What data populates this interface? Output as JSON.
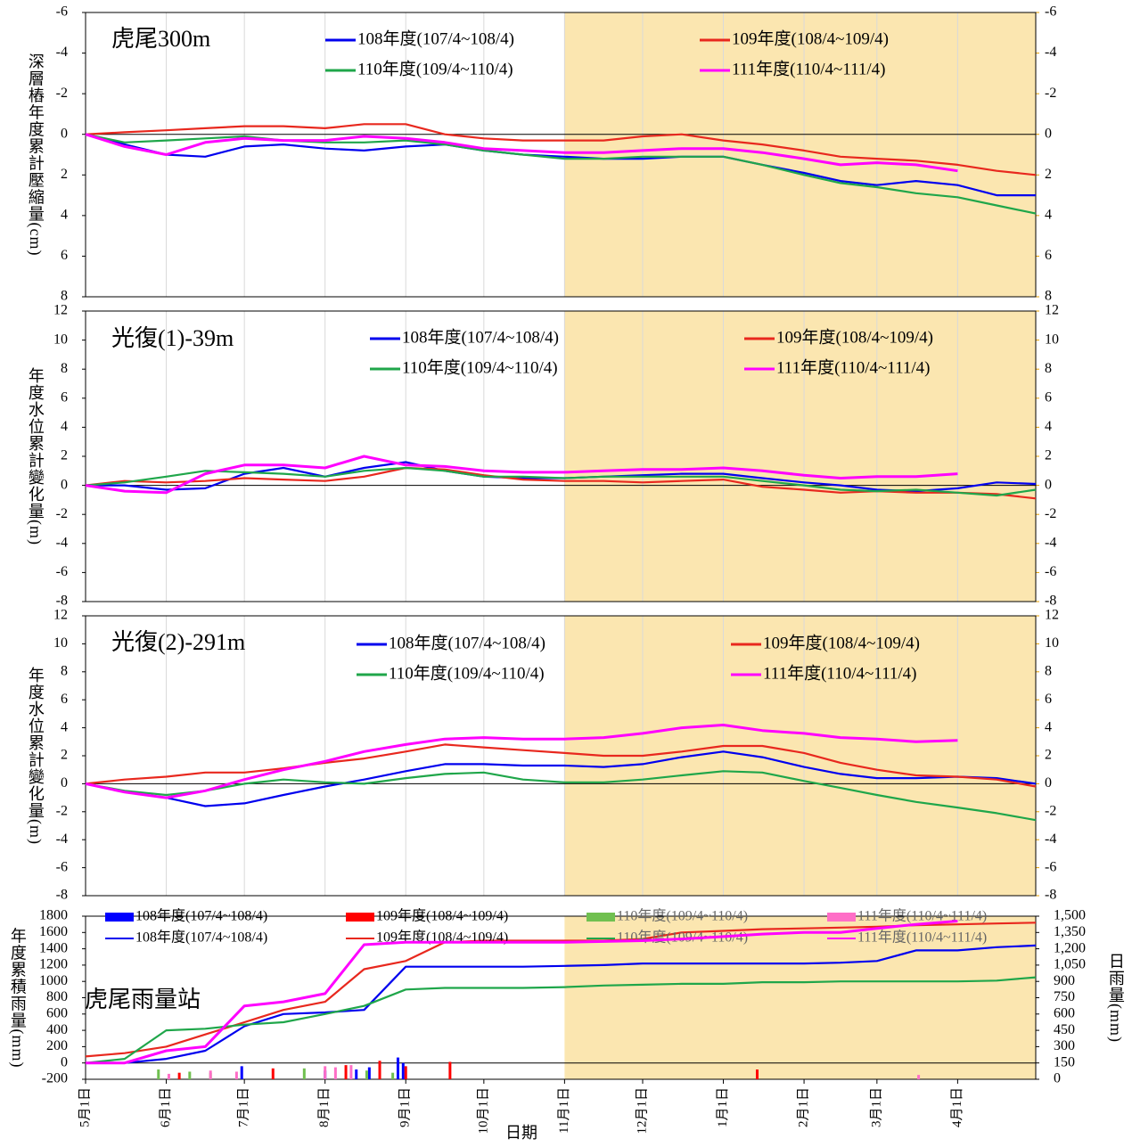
{
  "chart_data": [
    {
      "type": "line",
      "title": "虎尾300m",
      "y_label": "深層樁年度累計壓縮量(cm)",
      "y_inverted": true,
      "ylim": [
        -6,
        8
      ],
      "yticks": [
        -6,
        -4,
        -2,
        0,
        2,
        4,
        6,
        8
      ],
      "right_axis_mirror": true,
      "xlim": [
        0,
        365
      ],
      "xgrid": [
        31,
        61,
        92,
        123,
        153,
        184,
        214,
        245,
        276,
        304,
        335
      ],
      "highlight_x": [
        184,
        365
      ],
      "highlight_color": "#fbe6b0",
      "x": [
        0,
        15,
        31,
        46,
        61,
        76,
        92,
        107,
        123,
        138,
        153,
        168,
        184,
        199,
        214,
        229,
        245,
        260,
        276,
        290,
        304,
        319,
        335,
        350,
        365
      ],
      "series": [
        {
          "name": "108年度(107/4~108/4)",
          "color": "#0000ee",
          "values": [
            0,
            0.5,
            1,
            1.1,
            0.6,
            0.5,
            0.7,
            0.8,
            0.6,
            0.5,
            0.8,
            1,
            1.1,
            1.2,
            1.2,
            1.1,
            1.1,
            1.5,
            1.9,
            2.3,
            2.5,
            2.3,
            2.5,
            3,
            3
          ]
        },
        {
          "name": "109年度(108/4~109/4)",
          "color": "#e8281e",
          "values": [
            0,
            -0.1,
            -0.2,
            -0.3,
            -0.4,
            -0.4,
            -0.3,
            -0.5,
            -0.5,
            0,
            0.2,
            0.3,
            0.3,
            0.3,
            0.1,
            0,
            0.3,
            0.5,
            0.8,
            1.1,
            1.2,
            1.3,
            1.5,
            1.8,
            2
          ]
        },
        {
          "name": "110年度(109/4~110/4)",
          "color": "#1fa64a",
          "values": [
            0,
            0.4,
            0.3,
            0.2,
            0.1,
            0.3,
            0.4,
            0.4,
            0.3,
            0.5,
            0.8,
            1,
            1.2,
            1.2,
            1.1,
            1.1,
            1.1,
            1.5,
            2,
            2.4,
            2.6,
            2.9,
            3.1,
            3.5,
            3.9
          ]
        },
        {
          "name": "111年度(110/4~111/4)",
          "color": "#ff00ff",
          "values": [
            0,
            0.6,
            1.0,
            0.4,
            0.2,
            0.3,
            0.3,
            0.1,
            0.2,
            0.4,
            0.7,
            0.8,
            0.9,
            0.9,
            0.8,
            0.7,
            0.7,
            0.9,
            1.2,
            1.5,
            1.4,
            1.5,
            1.8,
            null,
            null
          ]
        }
      ]
    },
    {
      "type": "line",
      "title": "光復(1)-39m",
      "y_label": "年度水位累計變化量(m)",
      "ylim": [
        -8,
        12
      ],
      "yticks": [
        -8,
        -6,
        -4,
        -2,
        0,
        2,
        4,
        6,
        8,
        10,
        12
      ],
      "right_axis_mirror": true,
      "xlim": [
        0,
        365
      ],
      "xgrid": [
        31,
        61,
        92,
        123,
        153,
        184,
        214,
        245,
        276,
        304,
        335
      ],
      "highlight_x": [
        184,
        365
      ],
      "highlight_color": "#fbe6b0",
      "x": [
        0,
        15,
        31,
        46,
        61,
        76,
        92,
        107,
        123,
        138,
        153,
        168,
        184,
        199,
        214,
        229,
        245,
        260,
        276,
        290,
        304,
        319,
        335,
        350,
        365
      ],
      "series": [
        {
          "name": "108年度(107/4~108/4)",
          "color": "#0000ee",
          "values": [
            0,
            0,
            -0.3,
            -0.2,
            0.8,
            1.2,
            0.6,
            1.2,
            1.6,
            1.0,
            0.6,
            0.5,
            0.5,
            0.6,
            0.7,
            0.8,
            0.8,
            0.5,
            0.2,
            0,
            -0.3,
            -0.4,
            -0.2,
            0.2,
            0.1
          ]
        },
        {
          "name": "109年度(108/4~109/4)",
          "color": "#e8281e",
          "values": [
            0,
            0.3,
            0.2,
            0.3,
            0.5,
            0.4,
            0.3,
            0.6,
            1.2,
            1.1,
            0.7,
            0.4,
            0.3,
            0.3,
            0.2,
            0.3,
            0.4,
            -0.1,
            -0.3,
            -0.5,
            -0.4,
            -0.5,
            -0.5,
            -0.6,
            -0.9
          ]
        },
        {
          "name": "110年度(109/4~110/4)",
          "color": "#1fa64a",
          "values": [
            0,
            0.2,
            0.6,
            1.0,
            0.9,
            0.8,
            0.6,
            1.0,
            1.2,
            1.0,
            0.6,
            0.6,
            0.5,
            0.6,
            0.6,
            0.6,
            0.6,
            0.3,
            0,
            -0.3,
            -0.4,
            -0.3,
            -0.5,
            -0.7,
            -0.3
          ]
        },
        {
          "name": "111年度(110/4~111/4)",
          "color": "#ff00ff",
          "values": [
            0,
            -0.4,
            -0.5,
            0.8,
            1.4,
            1.4,
            1.2,
            2.0,
            1.4,
            1.3,
            1.0,
            0.9,
            0.9,
            1.0,
            1.1,
            1.1,
            1.2,
            1.0,
            0.7,
            0.5,
            0.6,
            0.6,
            0.8,
            null,
            null
          ]
        }
      ]
    },
    {
      "type": "line",
      "title": "光復(2)-291m",
      "y_label": "年度水位累計變化量(m)",
      "ylim": [
        -8,
        12
      ],
      "yticks": [
        -8,
        -6,
        -4,
        -2,
        0,
        2,
        4,
        6,
        8,
        10,
        12
      ],
      "right_axis_mirror": true,
      "xlim": [
        0,
        365
      ],
      "xgrid": [
        31,
        61,
        92,
        123,
        153,
        184,
        214,
        245,
        276,
        304,
        335
      ],
      "highlight_x": [
        184,
        365
      ],
      "highlight_color": "#fbe6b0",
      "x": [
        0,
        15,
        31,
        46,
        61,
        76,
        92,
        107,
        123,
        138,
        153,
        168,
        184,
        199,
        214,
        229,
        245,
        260,
        276,
        290,
        304,
        319,
        335,
        350,
        365
      ],
      "series": [
        {
          "name": "108年度(107/4~108/4)",
          "color": "#0000ee",
          "values": [
            0,
            -0.6,
            -1.0,
            -1.6,
            -1.4,
            -0.8,
            -0.2,
            0.3,
            0.9,
            1.4,
            1.4,
            1.3,
            1.3,
            1.2,
            1.4,
            1.9,
            2.3,
            1.9,
            1.2,
            0.7,
            0.4,
            0.4,
            0.5,
            0.4,
            0
          ]
        },
        {
          "name": "109年度(108/4~109/4)",
          "color": "#e8281e",
          "values": [
            0,
            0.3,
            0.5,
            0.8,
            0.8,
            1.1,
            1.5,
            1.8,
            2.3,
            2.8,
            2.6,
            2.4,
            2.2,
            2.0,
            2.0,
            2.3,
            2.7,
            2.7,
            2.2,
            1.5,
            1.0,
            0.6,
            0.5,
            0.3,
            -0.2
          ]
        },
        {
          "name": "110年度(109/4~110/4)",
          "color": "#1fa64a",
          "values": [
            0,
            -0.5,
            -0.8,
            -0.5,
            0,
            0.3,
            0.1,
            0,
            0.4,
            0.7,
            0.8,
            0.3,
            0.1,
            0.1,
            0.3,
            0.6,
            0.9,
            0.8,
            0.2,
            -0.3,
            -0.8,
            -1.3,
            -1.7,
            -2.1,
            -2.6
          ]
        },
        {
          "name": "111年度(110/4~111/4)",
          "color": "#ff00ff",
          "values": [
            0,
            -0.6,
            -1.0,
            -0.5,
            0.3,
            1.0,
            1.6,
            2.3,
            2.8,
            3.2,
            3.3,
            3.2,
            3.2,
            3.3,
            3.6,
            4.0,
            4.2,
            3.8,
            3.6,
            3.3,
            3.2,
            3.0,
            3.1,
            null,
            null
          ]
        }
      ]
    },
    {
      "type": "combo",
      "title": "虎尾雨量站",
      "y_label": "年度累積雨量(mm)",
      "y2_label": "日雨量(mm)",
      "x_label": "日期",
      "ylim": [
        -200,
        1800
      ],
      "yticks": [
        -200,
        0,
        200,
        400,
        600,
        800,
        1000,
        1200,
        1400,
        1600,
        1800
      ],
      "y2lim": [
        0,
        1500
      ],
      "y2ticks": [
        0,
        150,
        300,
        450,
        600,
        750,
        900,
        {
          "value": 1050,
          "label": "1,050"
        },
        {
          "value": 1200,
          "label": "1,200"
        },
        {
          "value": 1350,
          "label": "1,350"
        },
        {
          "value": 1500,
          "label": "1,500"
        }
      ],
      "xlim": [
        0,
        365
      ],
      "highlight_x": [
        184,
        365
      ],
      "highlight_color": "#fbe6b0",
      "xticks": [
        {
          "value": 0,
          "label": "5月1日"
        },
        {
          "value": 31,
          "label": "6月1日"
        },
        {
          "value": 61,
          "label": "7月1日"
        },
        {
          "value": 92,
          "label": "8月1日"
        },
        {
          "value": 123,
          "label": "9月1日"
        },
        {
          "value": 153,
          "label": "10月1日"
        },
        {
          "value": 184,
          "label": "11月1日"
        },
        {
          "value": 214,
          "label": "12月1日"
        },
        {
          "value": 245,
          "label": "1月1日"
        },
        {
          "value": 276,
          "label": "2月1日"
        },
        {
          "value": 304,
          "label": "3月1日"
        },
        {
          "value": 335,
          "label": "4月1日"
        }
      ],
      "series": [
        {
          "type": "bar",
          "axis": "y2",
          "name": "108年度(107/4~108/4)",
          "color": "#0000ff",
          "x": [
            60,
            92,
            104,
            109,
            120,
            122
          ],
          "values": [
            120,
            80,
            90,
            110,
            200,
            150
          ]
        },
        {
          "type": "bar",
          "axis": "y2",
          "name": "109年度(108/4~109/4)",
          "color": "#ff0000",
          "x": [
            36,
            72,
            100,
            113,
            123,
            140,
            258
          ],
          "values": [
            60,
            100,
            130,
            170,
            120,
            160,
            90
          ]
        },
        {
          "type": "bar",
          "axis": "y2",
          "name": "110年度(109/4~110/4)",
          "color": "#70c050",
          "x": [
            28,
            40,
            48,
            84,
            108,
            118
          ],
          "values": [
            90,
            70,
            60,
            100,
            80,
            60
          ]
        },
        {
          "type": "bar",
          "axis": "y2",
          "name": "111年度(110/4~111/4)",
          "color": "#ff6ec7",
          "x": [
            32,
            48,
            58,
            92,
            96,
            102,
            320
          ],
          "values": [
            50,
            80,
            70,
            120,
            110,
            130,
            40
          ]
        },
        {
          "type": "line",
          "name": "108年度(107/4~108/4)",
          "color": "#0000ee",
          "x": [
            0,
            15,
            31,
            46,
            61,
            76,
            92,
            107,
            123,
            138,
            153,
            168,
            184,
            199,
            214,
            229,
            245,
            260,
            276,
            290,
            304,
            319,
            335,
            350,
            365
          ],
          "values": [
            0,
            0,
            50,
            150,
            450,
            600,
            620,
            650,
            1180,
            1180,
            1180,
            1180,
            1190,
            1200,
            1220,
            1220,
            1220,
            1220,
            1220,
            1230,
            1250,
            1380,
            1380,
            1420,
            1440
          ]
        },
        {
          "type": "line",
          "name": "109年度(108/4~109/4)",
          "color": "#e8281e",
          "x": [
            0,
            15,
            31,
            46,
            61,
            76,
            92,
            107,
            123,
            138,
            153,
            168,
            184,
            199,
            214,
            229,
            245,
            260,
            276,
            290,
            304,
            319,
            335,
            350,
            365
          ],
          "values": [
            80,
            120,
            200,
            350,
            500,
            650,
            750,
            1150,
            1250,
            1480,
            1500,
            1500,
            1500,
            1500,
            1520,
            1600,
            1620,
            1640,
            1650,
            1660,
            1670,
            1690,
            1700,
            1710,
            1720
          ]
        },
        {
          "type": "line",
          "name": "110年度(109/4~110/4)",
          "color": "#1fa64a",
          "x": [
            0,
            15,
            31,
            46,
            61,
            76,
            92,
            107,
            123,
            138,
            153,
            168,
            184,
            199,
            214,
            229,
            245,
            260,
            276,
            290,
            304,
            319,
            335,
            350,
            365
          ],
          "values": [
            0,
            50,
            400,
            420,
            470,
            500,
            600,
            700,
            900,
            920,
            920,
            920,
            930,
            950,
            960,
            970,
            970,
            990,
            990,
            1000,
            1000,
            1000,
            1000,
            1010,
            1050
          ]
        },
        {
          "type": "line",
          "name": "111年度(110/4~111/4)",
          "color": "#ff00ff",
          "x": [
            0,
            15,
            31,
            46,
            61,
            76,
            92,
            107,
            123,
            138,
            153,
            168,
            184,
            199,
            214,
            229,
            245,
            260,
            276,
            290,
            304,
            319,
            335,
            350,
            365
          ],
          "values": [
            0,
            0,
            150,
            200,
            700,
            750,
            850,
            1450,
            1480,
            1480,
            1480,
            1480,
            1480,
            1490,
            1500,
            1520,
            1550,
            1580,
            1600,
            1600,
            1650,
            1700,
            1740,
            null,
            null
          ]
        }
      ]
    }
  ]
}
